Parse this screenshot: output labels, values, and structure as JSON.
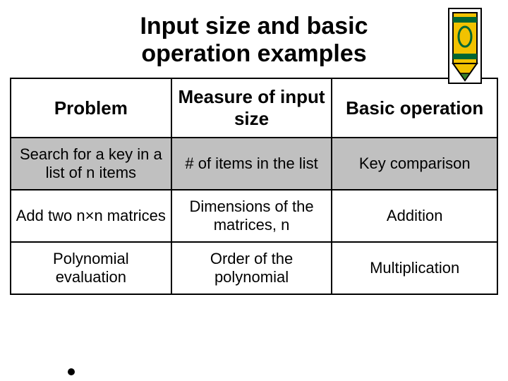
{
  "title": {
    "line1": "Input size and basic",
    "line2": "operation examples",
    "fontsize": 34,
    "color": "#000000"
  },
  "crayon": {
    "body_color": "#f2c200",
    "stripe_color": "#006633",
    "tip_color": "#3a7f2a",
    "outline_color": "#000000"
  },
  "table": {
    "type": "table",
    "border_color": "#000000",
    "border_width": 2,
    "header_bg": "#ffffff",
    "header_fontsize": 26,
    "cell_fontsize": 22,
    "row_bg_shaded": "#c0c0c0",
    "row_bg_plain": "#ffffff",
    "col_widths_pct": [
      33,
      33,
      34
    ],
    "columns": [
      "Problem",
      "Measure of input size",
      "Basic operation"
    ],
    "rows": [
      {
        "shaded": true,
        "cells": [
          "Search for a key in a list of n items",
          "# of items in the list",
          "Key comparison"
        ]
      },
      {
        "shaded": false,
        "cells": [
          "Add two n×n matrices",
          "Dimensions of the matrices, n",
          "Addition"
        ]
      },
      {
        "shaded": false,
        "cells": [
          "Polynomial evaluation",
          "Order of the polynomial",
          "Multiplication"
        ]
      }
    ]
  }
}
